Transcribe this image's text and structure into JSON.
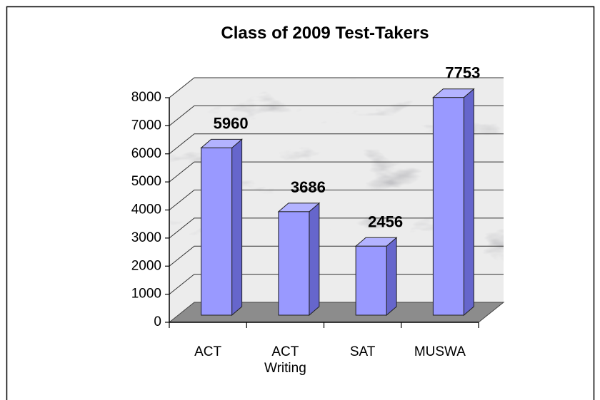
{
  "chart_data": {
    "type": "bar",
    "title": "Class of 2009 Test-Takers",
    "categories": [
      "ACT",
      "ACT Writing",
      "SAT",
      "MUSWA"
    ],
    "values": [
      5960,
      3686,
      2456,
      7753
    ],
    "color": "#9999ff",
    "ylim": [
      0,
      8000
    ],
    "yticks": [
      0,
      1000,
      2000,
      3000,
      4000,
      5000,
      6000,
      7000,
      8000
    ],
    "grid": true
  }
}
